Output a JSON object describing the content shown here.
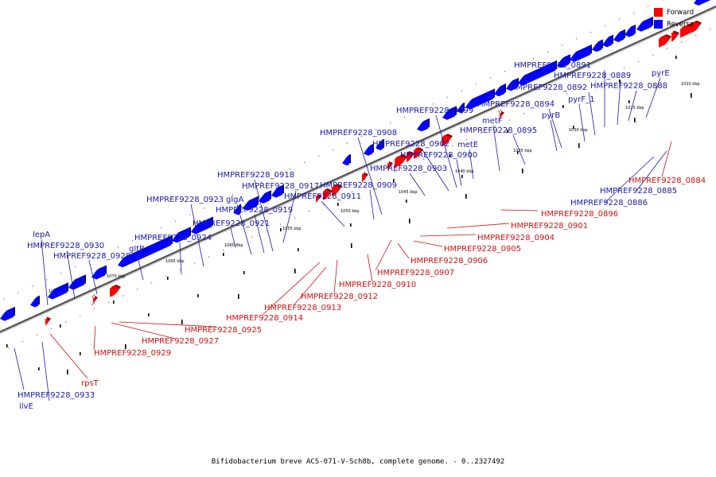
{
  "legend": {
    "forward": {
      "label": "Forward",
      "color": "#ff0000"
    },
    "reverse": {
      "label": "Reverse",
      "color": "#0000ff"
    }
  },
  "caption": "Bifidobacterium breve ACS-071-V-Sch8b, complete genome. - 0..2327492",
  "ticks": [
    "1020 kbp",
    "1025 kbp",
    "1030 kbp",
    "1035 kbp",
    "1040 kbp",
    "1045 kbp",
    "1050 kbp",
    "1055 kbp",
    "1060 kbp",
    "1065 kbp",
    "1070 kbp",
    "1075 kbp"
  ],
  "genes": {
    "reverse": [
      "pyrE",
      "HMPREF9228_0888",
      "HMPREF9228_0889",
      "HMPREF9228_0891",
      "HMPREF9228_0892",
      "pyrF_1",
      "HMPREF9228_0894",
      "pyrB",
      "HMPREF9228_0895",
      "metF",
      "HMPREF9228_0899",
      "metE",
      "HMPREF9228_0900",
      "HMPREF9228_0902",
      "HMPREF9228_0903",
      "HMPREF9228_0908",
      "HMPREF9228_0909",
      "HMPREF9228_0911",
      "HMPREF9228_0917",
      "HMPREF9228_0918",
      "HMPREF9228_0919",
      "glgA",
      "HMPREF9228_0921",
      "HMPREF9228_0923",
      "HMPREF9228_0924",
      "gltB",
      "HMPREF9228_0928",
      "lepA",
      "HMPREF9228_0930",
      "HMPREF9228_0933",
      "ilvE",
      "HMPREF9228_0885",
      "HMPREF9228_0886"
    ],
    "forward": [
      "HMPREF9228_0884",
      "HMPREF9228_0896",
      "HMPREF9228_0901",
      "HMPREF9228_0904",
      "HMPREF9228_0905",
      "HMPREF9228_0906",
      "HMPREF9228_0907",
      "HMPREF9228_0910",
      "HMPREF9228_0912",
      "HMPREF9228_0913",
      "HMPREF9228_0914",
      "HMPREF9228_0925",
      "HMPREF9228_0927",
      "HMPREF9228_0929",
      "rpsT"
    ]
  }
}
